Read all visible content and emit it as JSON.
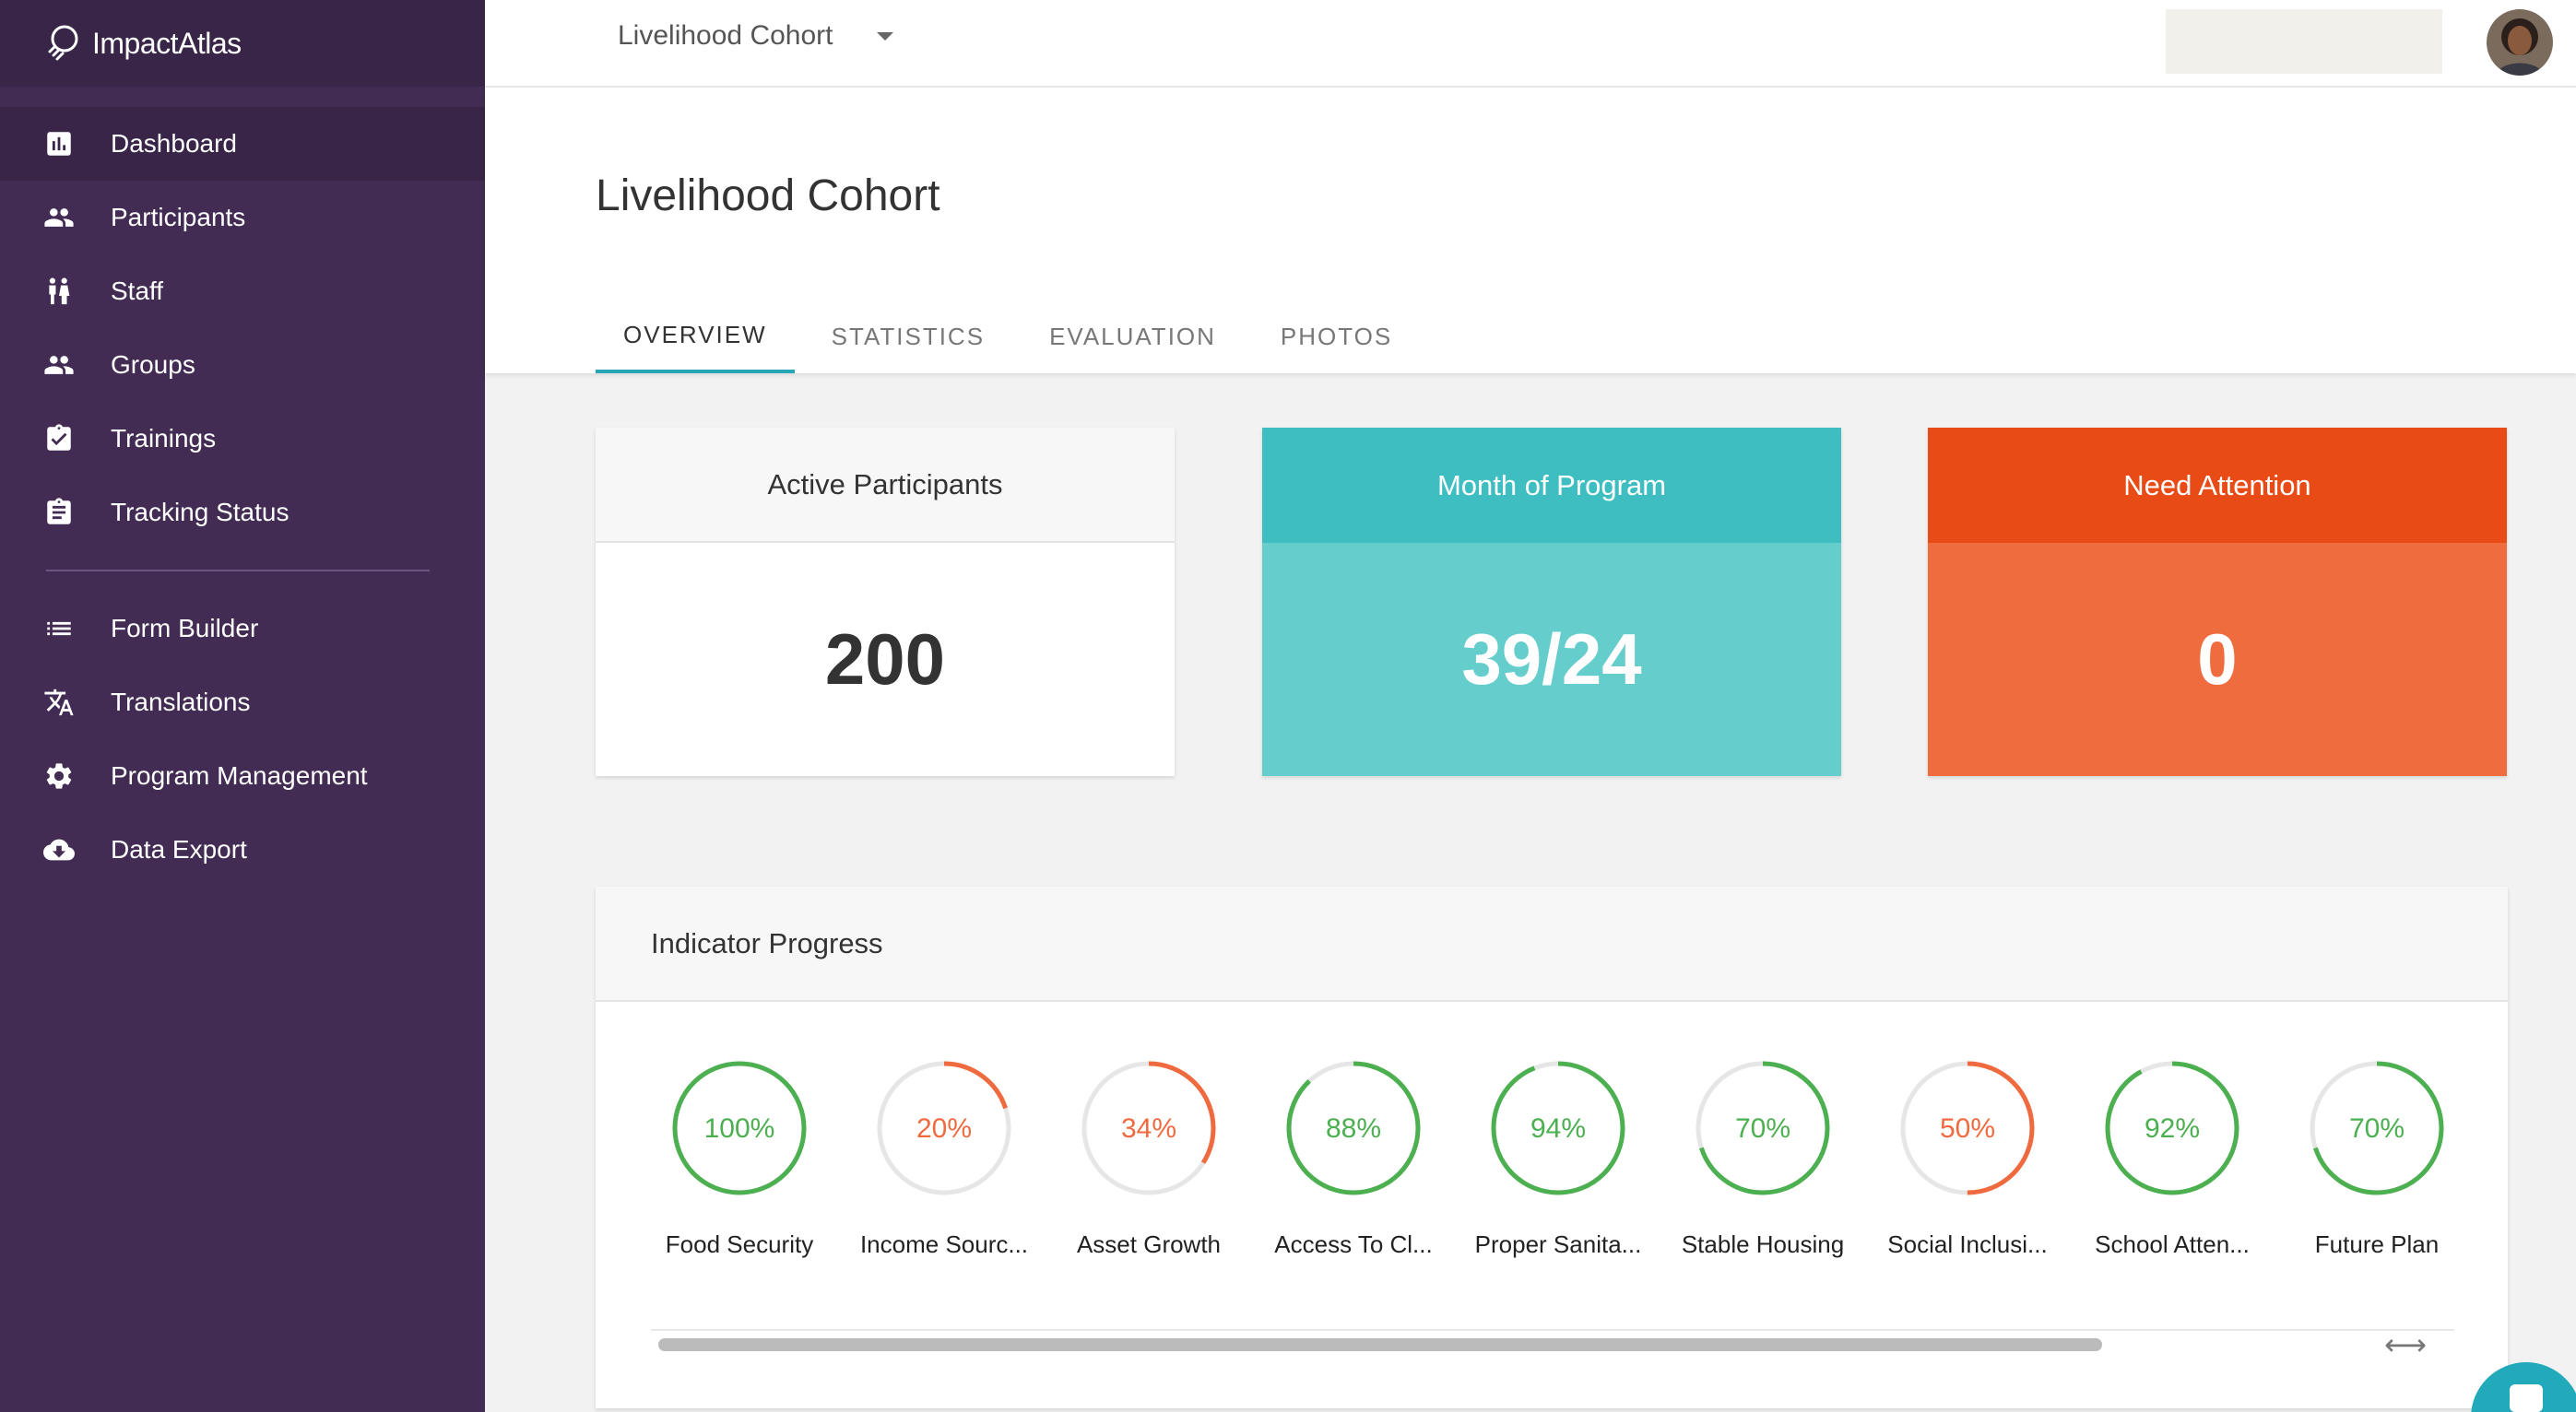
{
  "brand": {
    "name": "ImpactAtlas"
  },
  "sidebar": {
    "items": [
      {
        "label": "Dashboard",
        "icon": "bar-chart-icon",
        "active": true
      },
      {
        "label": "Participants",
        "icon": "people-icon"
      },
      {
        "label": "Staff",
        "icon": "staff-icon"
      },
      {
        "label": "Groups",
        "icon": "groups-icon"
      },
      {
        "label": "Trainings",
        "icon": "clipboard-check-icon"
      },
      {
        "label": "Tracking Status",
        "icon": "clipboard-list-icon"
      }
    ],
    "items2": [
      {
        "label": "Form Builder",
        "icon": "list-icon"
      },
      {
        "label": "Translations",
        "icon": "translate-icon"
      },
      {
        "label": "Program Management",
        "icon": "gear-icon"
      },
      {
        "label": "Data Export",
        "icon": "cloud-download-icon"
      }
    ]
  },
  "topbar": {
    "program": "Livelihood Cohort"
  },
  "page": {
    "title": "Livelihood Cohort",
    "tabs": [
      "OVERVIEW",
      "STATISTICS",
      "EVALUATION",
      "PHOTOS"
    ],
    "active_tab": "OVERVIEW"
  },
  "cards": {
    "active": {
      "title": "Active Participants",
      "value": "200"
    },
    "month": {
      "title": "Month of Program",
      "value": "39/24"
    },
    "attention": {
      "title": "Need Attention",
      "value": "0"
    }
  },
  "indicators": {
    "title": "Indicator Progress",
    "items": [
      {
        "label": "Food Security",
        "pct": "100%",
        "value": 100,
        "status": "good"
      },
      {
        "label": "Income Sourc...",
        "pct": "20%",
        "value": 20,
        "status": "low"
      },
      {
        "label": "Asset Growth",
        "pct": "34%",
        "value": 34,
        "status": "low"
      },
      {
        "label": "Access To Cl...",
        "pct": "88%",
        "value": 88,
        "status": "good"
      },
      {
        "label": "Proper Sanita...",
        "pct": "94%",
        "value": 94,
        "status": "good"
      },
      {
        "label": "Stable Housing",
        "pct": "70%",
        "value": 70,
        "status": "good"
      },
      {
        "label": "Social Inclusi...",
        "pct": "50%",
        "value": 50,
        "status": "low"
      },
      {
        "label": "School Atten...",
        "pct": "92%",
        "value": 92,
        "status": "good"
      },
      {
        "label": "Future Plan",
        "pct": "70%",
        "value": 70,
        "status": "good"
      }
    ]
  },
  "colors": {
    "sidebar": "#422c53",
    "accent": "#26a7b5",
    "good": "#4caf50",
    "low": "#f06a3f",
    "track": "#e6e6e6"
  }
}
